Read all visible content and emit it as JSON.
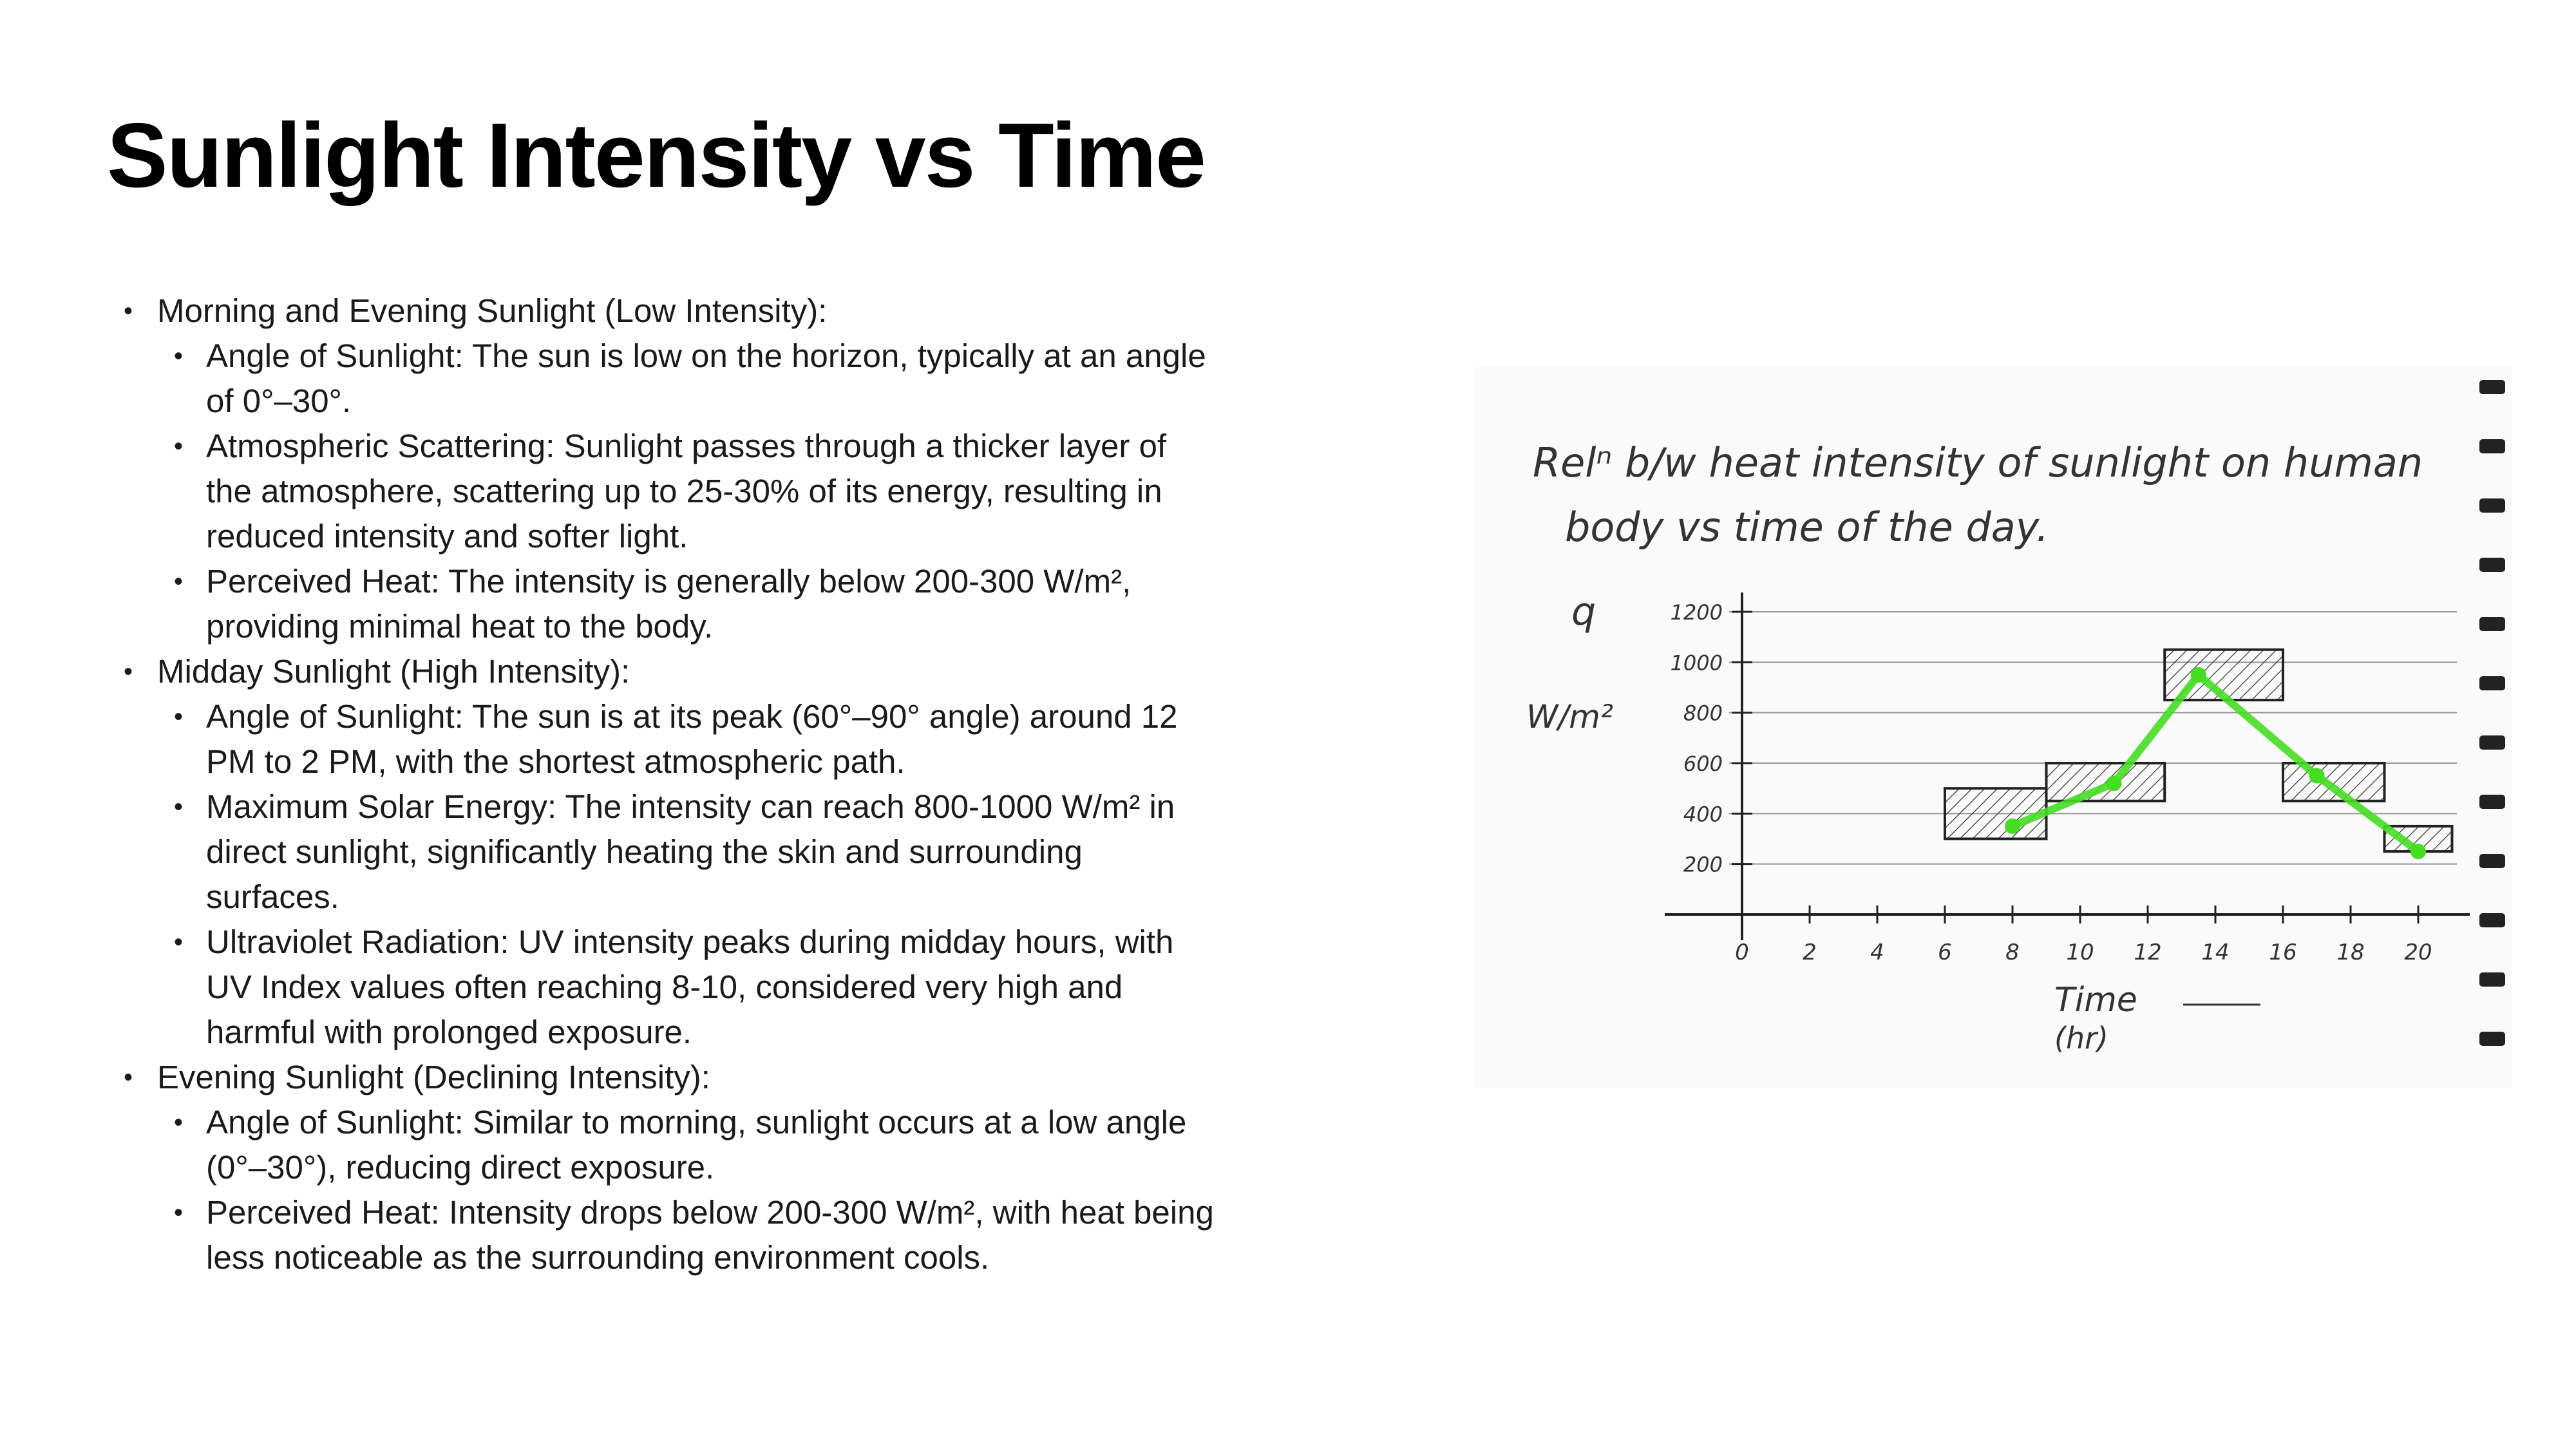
{
  "slide": {
    "title": "Sunlight Intensity vs Time",
    "sections": [
      {
        "heading": "Morning and Evening Sunlight (Low Intensity):",
        "items": [
          "Angle of Sunlight: The sun is low on the horizon, typically at an angle of 0°–30°.",
          "Atmospheric Scattering: Sunlight passes through a thicker layer of the atmosphere, scattering up to 25-30% of its energy, resulting in reduced intensity and softer light.",
          "Perceived Heat: The intensity is generally below 200-300 W/m², providing minimal heat to the body."
        ]
      },
      {
        "heading": "Midday Sunlight (High Intensity):",
        "items": [
          "Angle of Sunlight: The sun is at its peak (60°–90° angle) around 12 PM to 2 PM, with the shortest atmospheric path.",
          "Maximum Solar Energy: The intensity can reach 800-1000 W/m² in direct sunlight, significantly heating the skin and surrounding surfaces.",
          "Ultraviolet Radiation: UV intensity peaks during midday hours, with UV Index values often reaching 8-10, considered very high and harmful with prolonged exposure."
        ]
      },
      {
        "heading": "Evening Sunlight (Declining Intensity):",
        "items": [
          "Angle of Sunlight: Similar to morning, sunlight occurs at a low angle (0°–30°), reducing direct exposure.",
          "Perceived Heat: Intensity drops below 200-300 W/m², with heat being less noticeable as the surrounding environment cools."
        ]
      }
    ]
  },
  "sketch": {
    "caption_line1": "Relⁿ b/w heat intensity of sunlight on human",
    "caption_line2": "body vs time of the day.",
    "y_label_symbol": "q",
    "y_unit": "W/m²",
    "x_label_line1": "Time",
    "x_label_line2": "(hr)",
    "line_color": "#44dd22",
    "hatch_color": "#222222"
  },
  "chart_data": {
    "type": "line",
    "x": [
      8,
      11,
      13.5,
      17,
      20
    ],
    "y": [
      350,
      520,
      950,
      550,
      250
    ],
    "xlim": [
      0,
      20
    ],
    "ylim": [
      0,
      1200
    ],
    "xticks": [
      "0",
      "2",
      "4",
      "6",
      "8",
      "10",
      "12",
      "14",
      "16",
      "18",
      "20"
    ],
    "yticks": [
      "200",
      "400",
      "600",
      "800",
      "1000",
      "1200"
    ],
    "xlabel": "Time (hr)",
    "ylabel": "W/m²",
    "blocks": [
      {
        "x0": 6,
        "x1": 9,
        "ylow": 300,
        "yhigh": 500
      },
      {
        "x0": 9,
        "x1": 12.5,
        "ylow": 450,
        "yhigh": 600
      },
      {
        "x0": 12.5,
        "x1": 16,
        "ylow": 850,
        "yhigh": 1050
      },
      {
        "x0": 16,
        "x1": 19,
        "ylow": 450,
        "yhigh": 600
      },
      {
        "x0": 19,
        "x1": 21,
        "ylow": 250,
        "yhigh": 350
      }
    ]
  }
}
